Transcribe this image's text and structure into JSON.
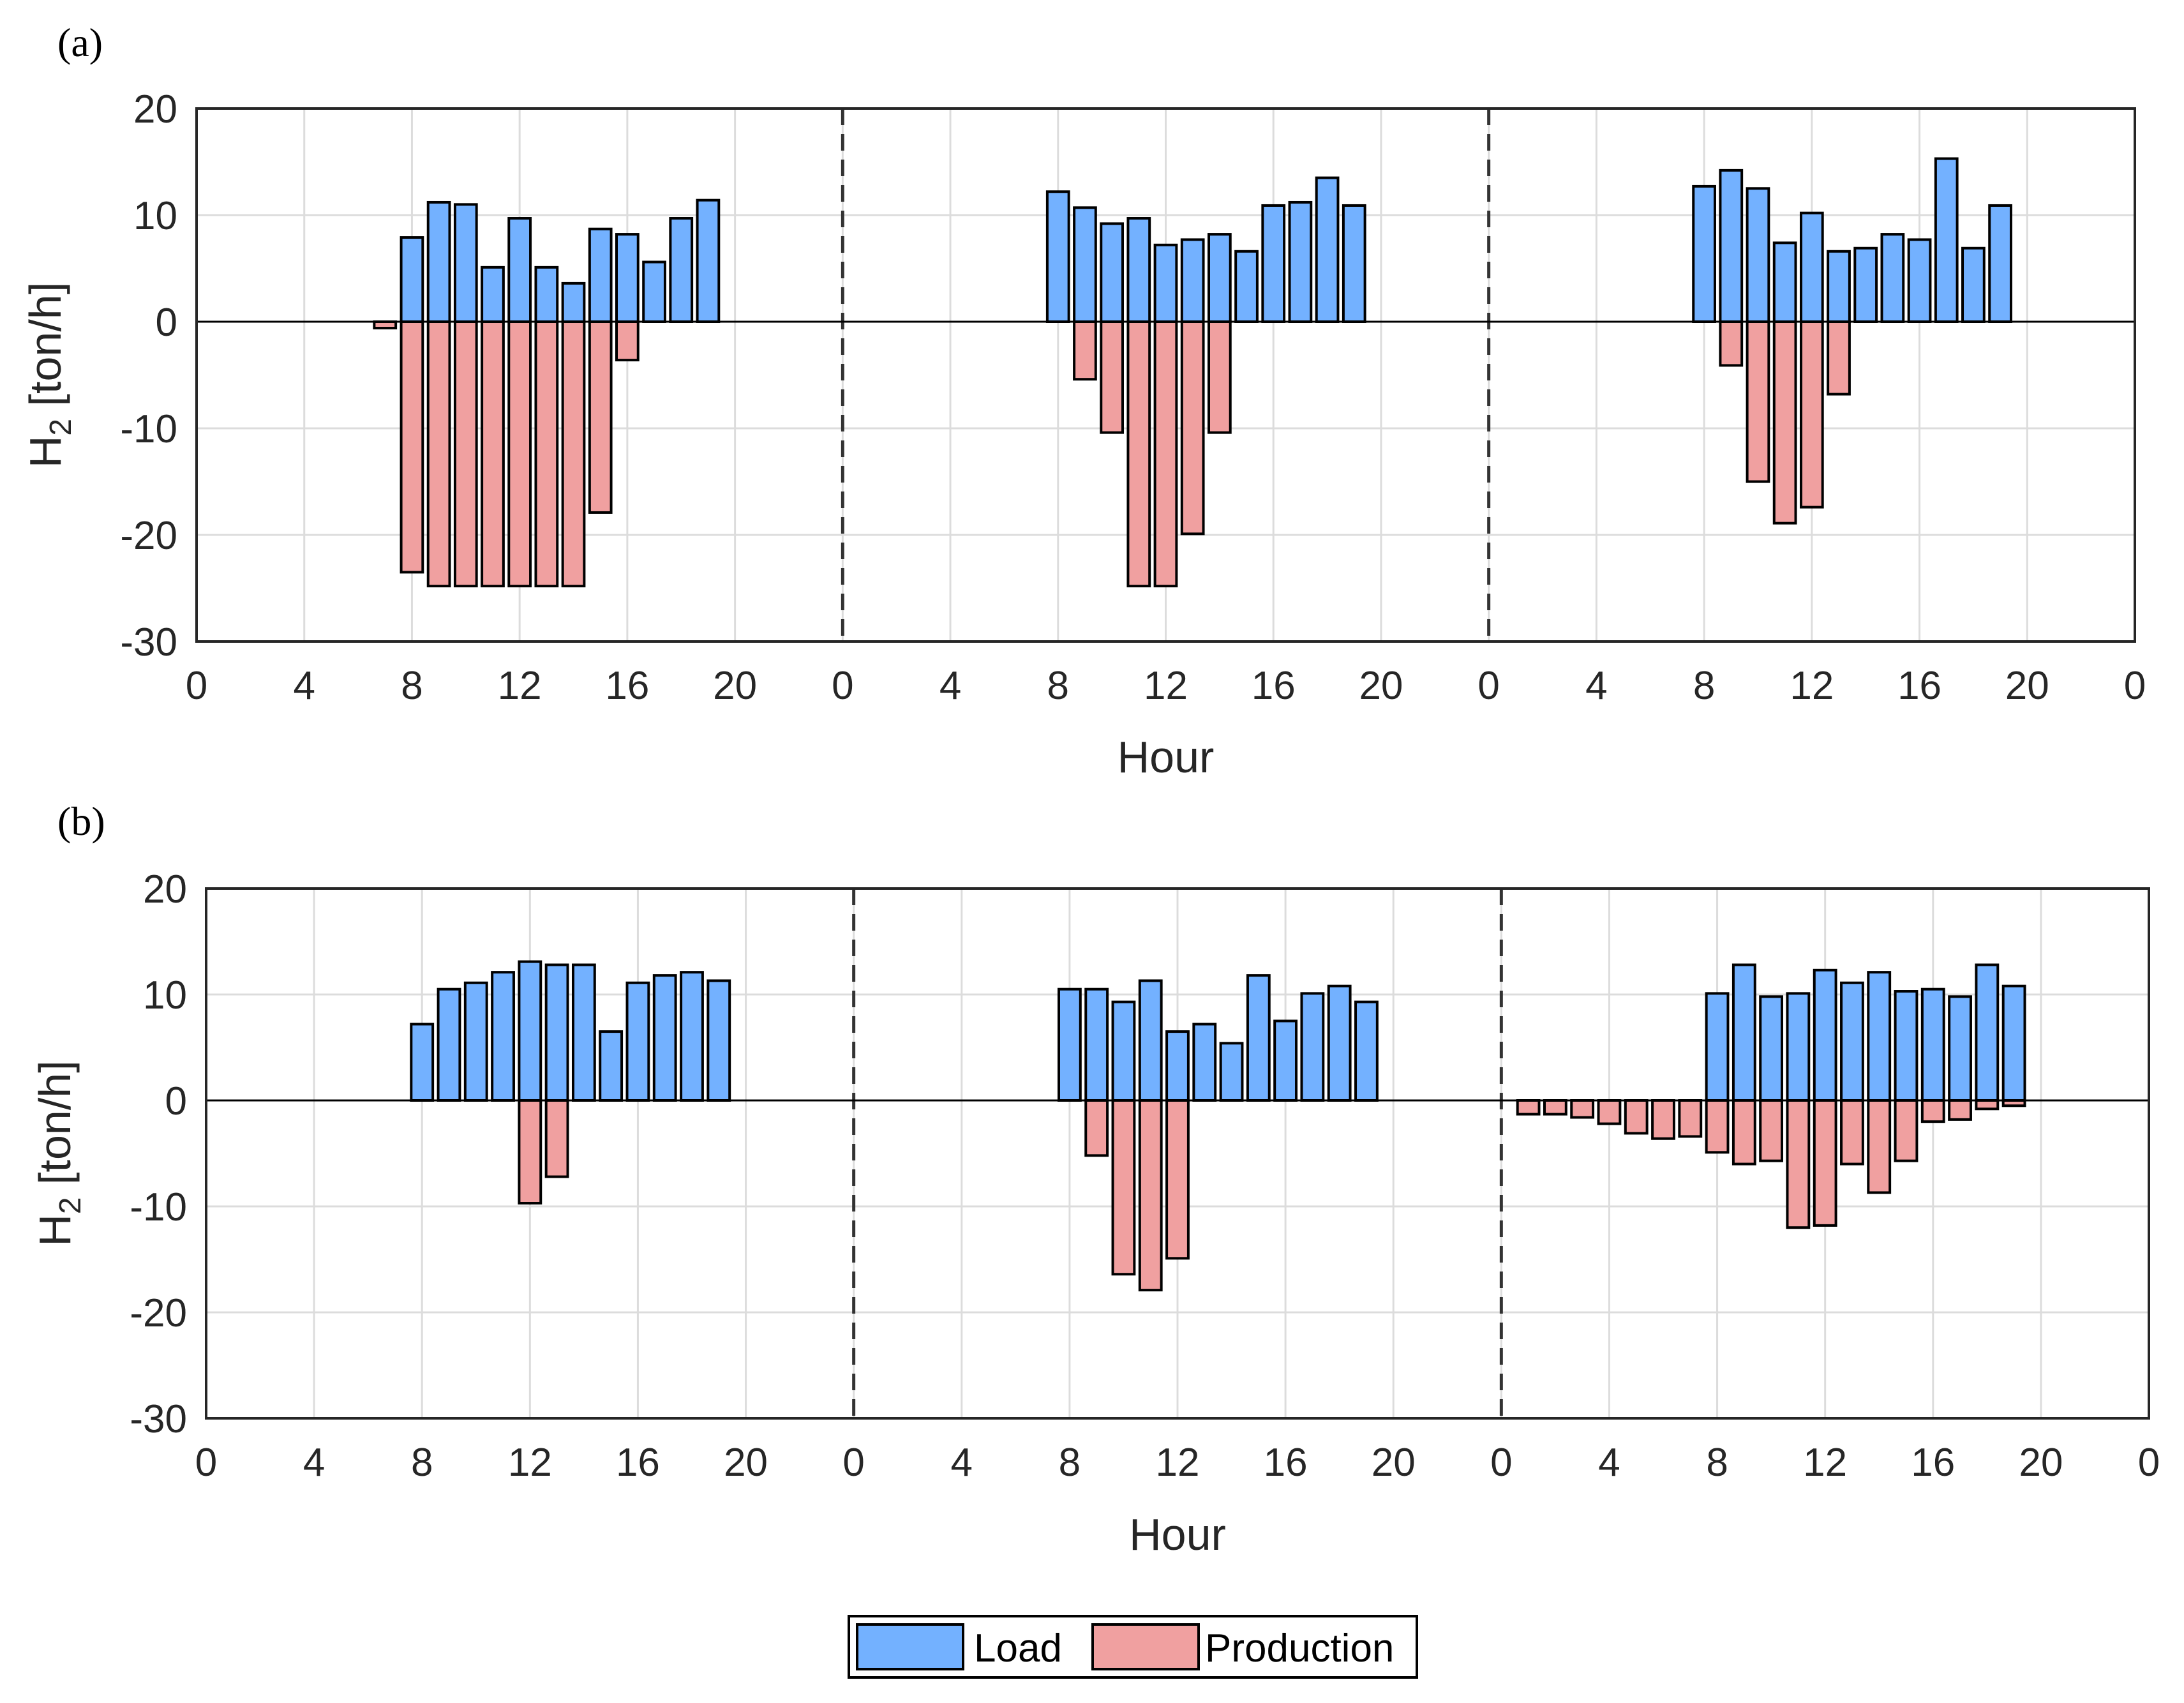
{
  "figure": {
    "legend": {
      "load_label": "Load",
      "production_label": "Production",
      "load_color": "#73B1FF",
      "production_color": "#F0A0A0"
    }
  },
  "chart_data": [
    {
      "type": "bar",
      "panel_label": "(a)",
      "xlabel": "Hour",
      "ylabel": "H2 [ton/h]",
      "ylabel_main": "H",
      "ylabel_sub": "2",
      "ylabel_rest": " [ton/h]",
      "ylim": [
        -30,
        20
      ],
      "yticks": [
        20,
        10,
        0,
        -10,
        -20,
        -30
      ],
      "ytick_labels": [
        "20",
        "10",
        "0",
        "-10",
        "-20",
        "-30"
      ],
      "xlim": [
        0,
        72
      ],
      "xticks": [
        0,
        4,
        8,
        12,
        16,
        20,
        24,
        28,
        32,
        36,
        40,
        44,
        48,
        52,
        56,
        60,
        64,
        68,
        72
      ],
      "xtick_labels": [
        "0",
        "4",
        "8",
        "12",
        "16",
        "20",
        "0",
        "4",
        "8",
        "12",
        "16",
        "20",
        "0",
        "4",
        "8",
        "12",
        "16",
        "20",
        "0"
      ],
      "day_separators": [
        24,
        48
      ],
      "hours": [
        7,
        8,
        9,
        10,
        11,
        12,
        13,
        14,
        15,
        16,
        17,
        18,
        19,
        32,
        33,
        34,
        35,
        36,
        37,
        38,
        39,
        40,
        41,
        42,
        43,
        56,
        57,
        58,
        59,
        60,
        61,
        62,
        63,
        64,
        65,
        66,
        67
      ],
      "series": [
        {
          "name": "Load",
          "values": [
            0,
            7.9,
            11.2,
            11,
            5.1,
            9.7,
            5.1,
            3.6,
            8.7,
            8.2,
            5.6,
            9.7,
            11.4,
            12.2,
            10.7,
            9.2,
            9.7,
            7.2,
            7.7,
            8.2,
            6.6,
            10.9,
            11.2,
            13.5,
            10.9,
            12.7,
            14.2,
            12.5,
            7.4,
            10.2,
            6.6,
            6.9,
            8.2,
            7.7,
            15.3,
            6.9,
            10.9
          ]
        },
        {
          "name": "Production",
          "values": [
            -0.6,
            -23.5,
            -24.8,
            -24.8,
            -24.8,
            -24.8,
            -24.8,
            -24.8,
            -17.9,
            -3.6,
            0,
            0,
            0,
            0,
            -5.4,
            -10.4,
            -24.8,
            -24.8,
            -19.9,
            -10.4,
            0,
            0,
            0,
            0,
            0,
            0,
            -4.1,
            -15,
            -18.9,
            -17.4,
            -6.8,
            0,
            0,
            0,
            0,
            0,
            0
          ]
        }
      ]
    },
    {
      "type": "bar",
      "panel_label": "(b)",
      "xlabel": "Hour",
      "ylabel": "H2 [ton/h]",
      "ylabel_main": "H",
      "ylabel_sub": "2",
      "ylabel_rest": " [ton/h]",
      "ylim": [
        -30,
        20
      ],
      "yticks": [
        20,
        10,
        0,
        -10,
        -20,
        -30
      ],
      "ytick_labels": [
        "20",
        "10",
        "0",
        "-10",
        "-20",
        "-30"
      ],
      "xlim": [
        0,
        72
      ],
      "xticks": [
        0,
        4,
        8,
        12,
        16,
        20,
        24,
        28,
        32,
        36,
        40,
        44,
        48,
        52,
        56,
        60,
        64,
        68,
        72
      ],
      "xtick_labels": [
        "0",
        "4",
        "8",
        "12",
        "16",
        "20",
        "0",
        "4",
        "8",
        "12",
        "16",
        "20",
        "0",
        "4",
        "8",
        "12",
        "16",
        "20",
        "0"
      ],
      "day_separators": [
        24,
        48
      ],
      "hours": [
        8,
        9,
        10,
        11,
        12,
        13,
        14,
        15,
        16,
        17,
        18,
        19,
        32,
        33,
        34,
        35,
        36,
        37,
        38,
        39,
        40,
        41,
        42,
        43,
        49,
        50,
        51,
        52,
        53,
        54,
        55,
        56,
        57,
        58,
        59,
        60,
        61,
        62,
        63,
        64,
        65,
        66,
        67
      ],
      "series": [
        {
          "name": "Load",
          "values": [
            7.2,
            10.5,
            11.1,
            12.1,
            13.1,
            12.8,
            12.8,
            6.5,
            11.1,
            11.8,
            12.1,
            11.3,
            10.5,
            10.5,
            9.3,
            11.3,
            6.5,
            7.2,
            5.4,
            11.8,
            7.5,
            10.1,
            10.8,
            9.3,
            0,
            0,
            0,
            0,
            0,
            0,
            0,
            10.1,
            12.8,
            9.8,
            10.1,
            12.3,
            11.1,
            12.1,
            10.3,
            10.5,
            9.8,
            12.8,
            10.8
          ]
        },
        {
          "name": "Production",
          "values": [
            0,
            0,
            0,
            0,
            -9.7,
            -7.2,
            0,
            0,
            0,
            0,
            0,
            0,
            0,
            -5.2,
            -16.4,
            -17.9,
            -14.9,
            0,
            0,
            0,
            0,
            0,
            0,
            0,
            -1.3,
            -1.3,
            -1.6,
            -2.2,
            -3.1,
            -3.6,
            -3.4,
            -4.9,
            -6,
            -5.7,
            -12,
            -11.8,
            -6,
            -8.7,
            -5.7,
            -2,
            -1.8,
            -0.8,
            -0.5
          ]
        }
      ]
    }
  ]
}
